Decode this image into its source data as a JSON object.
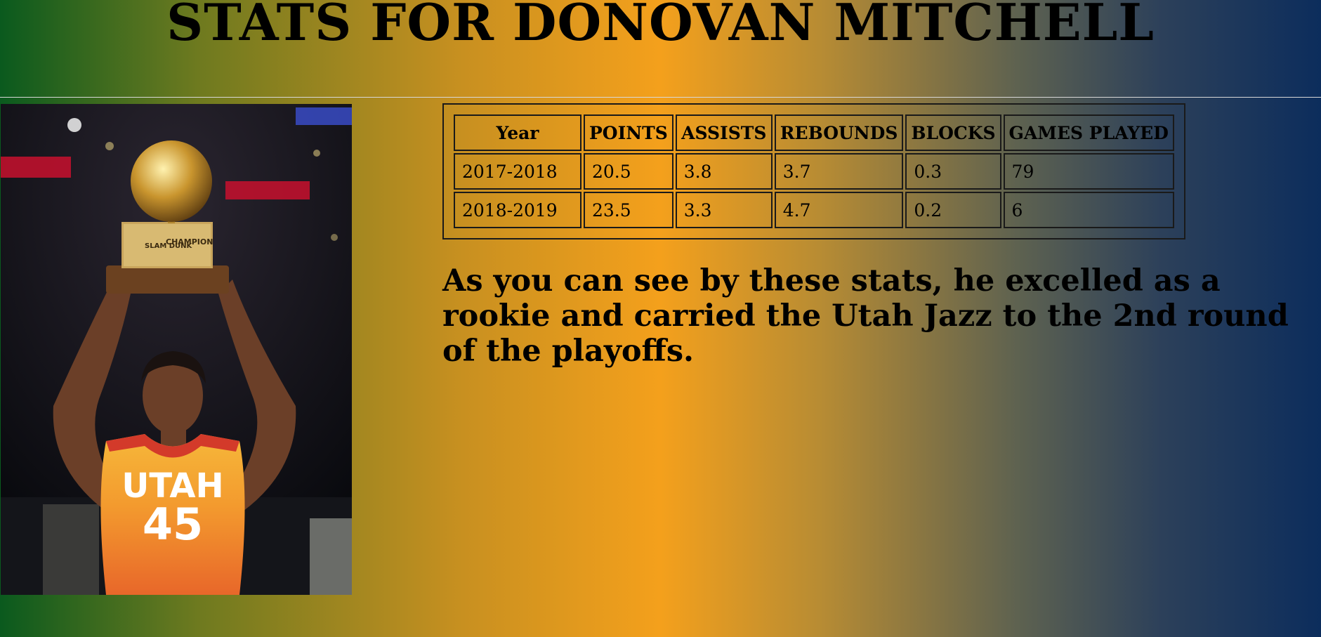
{
  "page": {
    "title": "STATS FOR DONOVAN MITCHELL"
  },
  "photo": {
    "jersey_team": "UTAH",
    "jersey_number": "45",
    "trophy_plaque_event": "SLAM DUNK",
    "trophy_plaque_label": "CHAMPION"
  },
  "stats_table": {
    "headers": [
      "Year",
      "POINTS",
      "ASSISTS",
      "REBOUNDS",
      "BLOCKS",
      "GAMES PLAYED"
    ],
    "rows": [
      [
        "2017-2018",
        "20.5",
        "3.8",
        "3.7",
        "0.3",
        "79"
      ],
      [
        "2018-2019",
        "23.5",
        "3.3",
        "4.7",
        "0.2",
        "6"
      ]
    ]
  },
  "summary": {
    "text": "As you can see by these stats, he excelled as a rookie and carried the Utah Jazz to the 2nd round of the playoffs."
  },
  "colors": {
    "gradient_left": "#0a5a1e",
    "gradient_mid": "#f4a01c",
    "gradient_right": "#0c2d5c"
  }
}
